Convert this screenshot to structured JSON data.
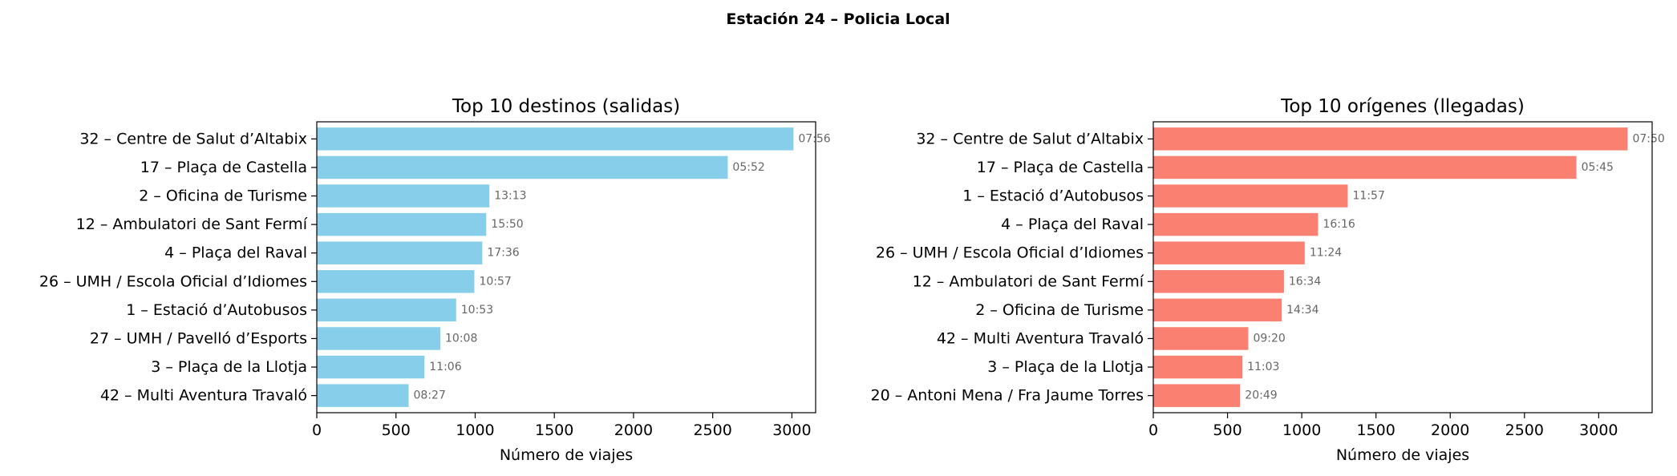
{
  "figure": {
    "title": "Estación 24 – Policia Local"
  },
  "chart_data": [
    {
      "type": "bar",
      "orientation": "horizontal",
      "title": "Top 10 destinos (salidas)",
      "xlabel": "Número de viajes",
      "ylabel": "",
      "xlim": [
        0,
        3150
      ],
      "xticks": [
        0,
        500,
        1000,
        1500,
        2000,
        2500,
        3000
      ],
      "color": "#87CEEB",
      "categories": [
        "32 – Centre de Salut d’Altabix",
        "17 – Plaça de Castella",
        "2 – Oficina de Turisme",
        "12 – Ambulatori de Sant Fermí",
        "4 – Plaça del Raval",
        "26 – UMH / Escola Oficial d’Idiomes",
        "1 – Estació d’Autobusos",
        "27 – UMH / Pavelló d’Esports",
        "3 – Plaça de la Llotja",
        "42 – Multi Aventura Travaló"
      ],
      "values": [
        3010,
        2595,
        1090,
        1070,
        1045,
        995,
        880,
        780,
        680,
        580
      ],
      "annotations": [
        "07:56",
        "05:52",
        "13:13",
        "15:50",
        "17:36",
        "10:57",
        "10:53",
        "10:08",
        "11:06",
        "08:27"
      ]
    },
    {
      "type": "bar",
      "orientation": "horizontal",
      "title": "Top 10 orígenes (llegadas)",
      "xlabel": "Número de viajes",
      "ylabel": "",
      "xlim": [
        0,
        3360
      ],
      "xticks": [
        0,
        500,
        1000,
        1500,
        2000,
        2500,
        3000
      ],
      "color": "#FA8072",
      "categories": [
        "32 – Centre de Salut d’Altabix",
        "17 – Plaça de Castella",
        "1 – Estació d’Autobusos",
        "4 – Plaça del Raval",
        "26 – UMH / Escola Oficial d’Idiomes",
        "12 – Ambulatori de Sant Fermí",
        "2 – Oficina de Turisme",
        "42 – Multi Aventura Travaló",
        "3 – Plaça de la Llotja",
        "20 – Antoni Mena / Fra Jaume Torres"
      ],
      "values": [
        3195,
        2850,
        1310,
        1110,
        1020,
        880,
        865,
        640,
        600,
        585
      ],
      "annotations": [
        "07:50",
        "05:45",
        "11:57",
        "16:16",
        "11:24",
        "16:34",
        "14:34",
        "09:20",
        "11:03",
        "20:49"
      ]
    }
  ]
}
